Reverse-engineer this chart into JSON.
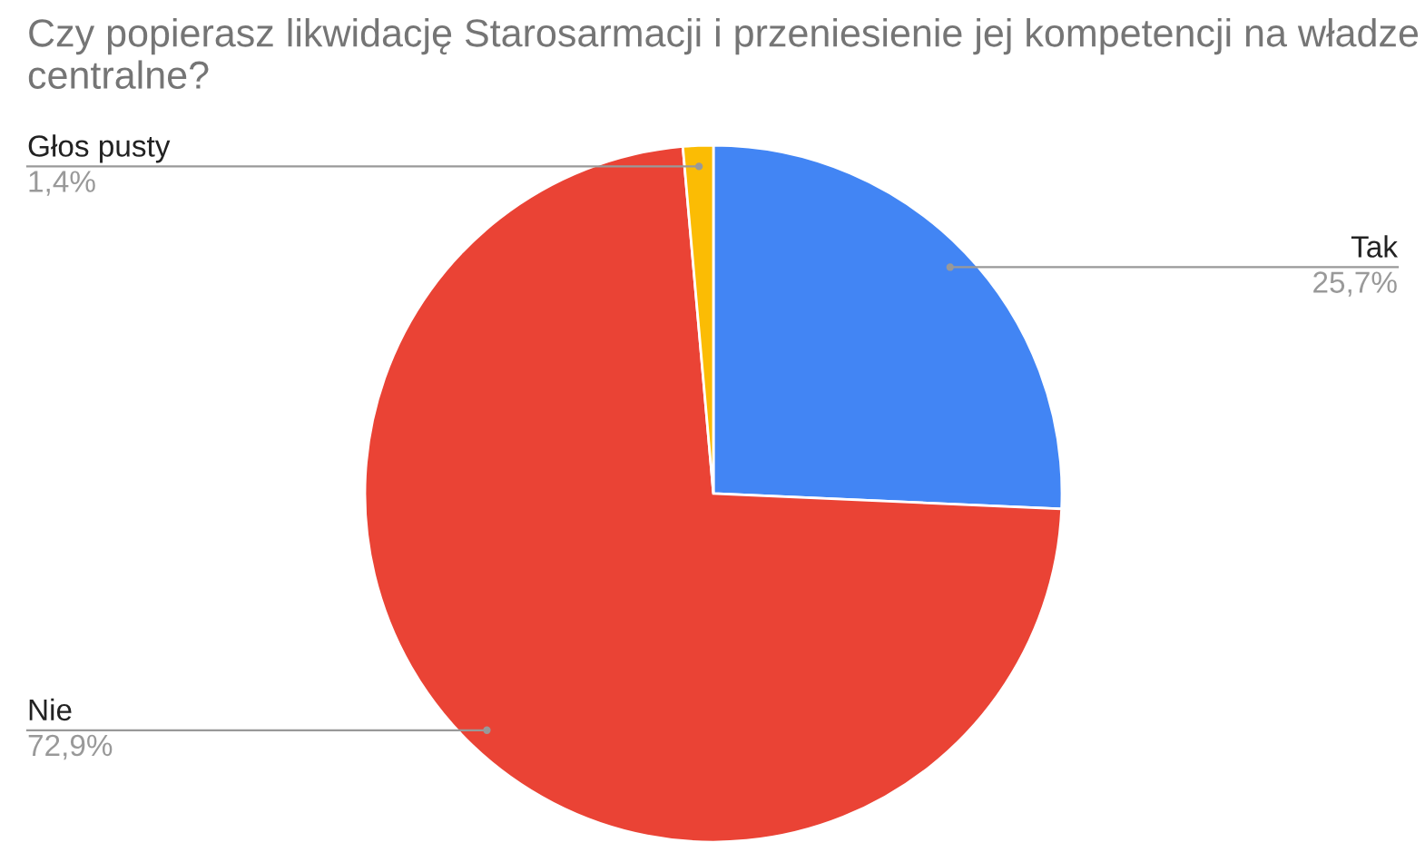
{
  "chart_data": {
    "type": "pie",
    "title": "Czy popierasz likwidację Starosarmacji i przeniesienie jej kompetencji na władze centralne?",
    "categories": [
      "Tak",
      "Nie",
      "Głos pusty"
    ],
    "values": [
      25.7,
      72.9,
      1.4
    ],
    "value_labels": [
      "25,7%",
      "72,9%",
      "1,4%"
    ],
    "colors": [
      "#4285f4",
      "#ea4335",
      "#fbbc04"
    ],
    "legend": false
  }
}
